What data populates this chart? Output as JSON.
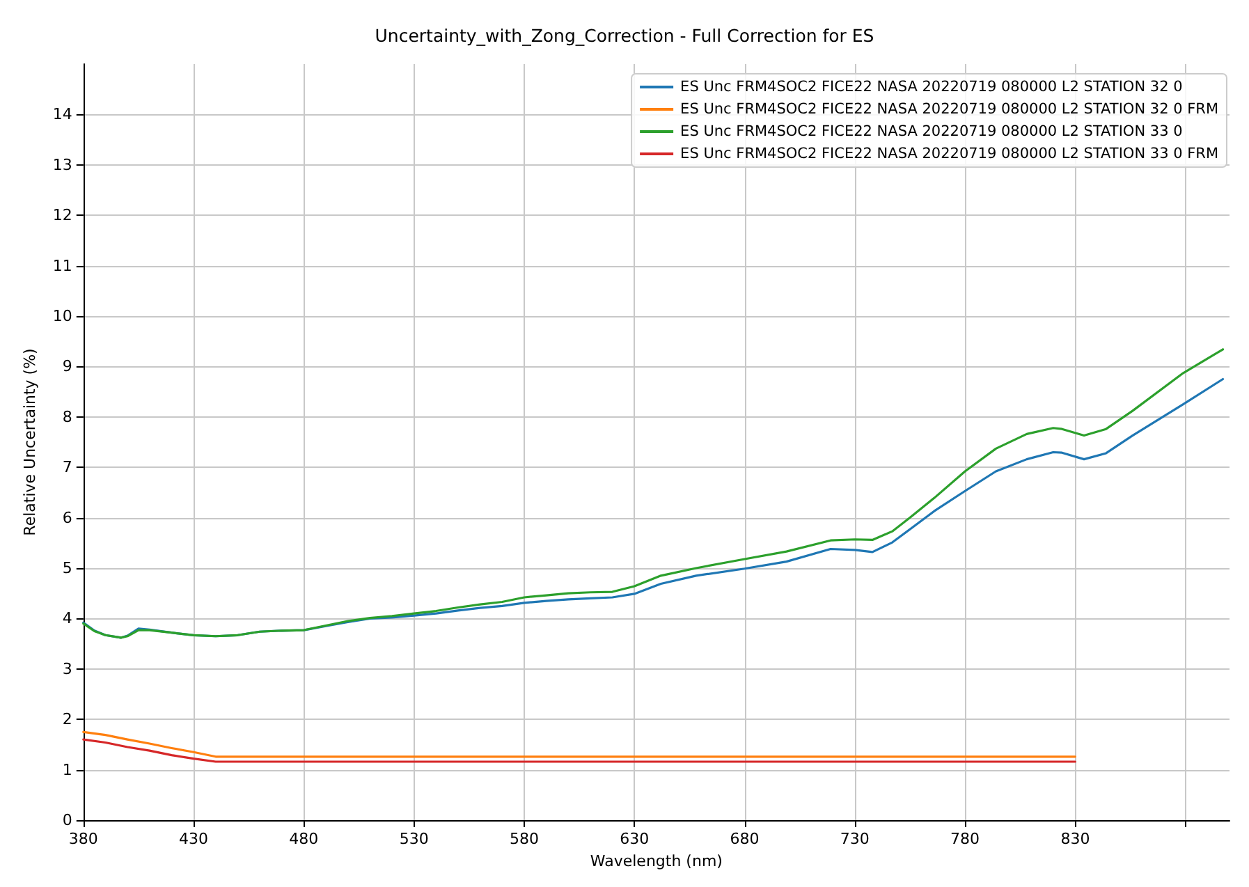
{
  "chart_data": {
    "type": "line",
    "title": "Uncertainty_with_Zong_Correction - Full Correction for ES",
    "xlabel": "Wavelength (nm)",
    "ylabel": "Relative Uncertainty (%)",
    "xlim": [
      380,
      900
    ],
    "xticks": [
      380,
      430,
      480,
      530,
      580,
      630,
      680,
      730,
      780,
      830,
      {
        "value": 880,
        "label": null
      }
    ],
    "ylim": [
      0,
      15
    ],
    "yticks": [
      0,
      1,
      2,
      3,
      4,
      5,
      6,
      7,
      8,
      9,
      10,
      11,
      12,
      13,
      14
    ],
    "grid": true,
    "legend": "top right",
    "marker": "none",
    "line_style": "solid",
    "series": [
      {
        "name": "ES Unc FRM4SOC2 FICE22 NASA 20220719 080000 L2 STATION 32 0",
        "color": "#1f77b4",
        "x": [
          380,
          385,
          390,
          397,
          400,
          405,
          410,
          420,
          430,
          440,
          450,
          460,
          470,
          480,
          490,
          500,
          510,
          520,
          530,
          540,
          550,
          560,
          570,
          580,
          590,
          600,
          610,
          620,
          630,
          642,
          658,
          680,
          699,
          719,
          730,
          738,
          747,
          755,
          766,
          780,
          794,
          808,
          820,
          824,
          834,
          844,
          856,
          879,
          897
        ],
        "values": [
          3.92,
          3.76,
          3.67,
          3.62,
          3.66,
          3.8,
          3.78,
          3.72,
          3.67,
          3.65,
          3.67,
          3.74,
          3.76,
          3.77,
          3.85,
          3.93,
          4.0,
          4.02,
          4.06,
          4.1,
          4.16,
          4.21,
          4.25,
          4.31,
          4.35,
          4.38,
          4.4,
          4.42,
          4.49,
          4.69,
          4.85,
          4.99,
          5.13,
          5.38,
          5.36,
          5.32,
          5.51,
          5.77,
          6.13,
          6.53,
          6.92,
          7.16,
          7.3,
          7.29,
          7.16,
          7.28,
          7.63,
          8.25,
          8.75
        ]
      },
      {
        "name": "ES Unc FRM4SOC2 FICE22 NASA 20220719 080000 L2 STATION 32 0 FRM",
        "color": "#ff7f0e",
        "x": [
          380,
          390,
          400,
          410,
          420,
          430,
          440,
          500,
          600,
          700,
          830
        ],
        "values": [
          1.75,
          1.69,
          1.6,
          1.52,
          1.43,
          1.35,
          1.26,
          1.26,
          1.26,
          1.26,
          1.26
        ]
      },
      {
        "name": "ES Unc FRM4SOC2 FICE22 NASA 20220719 080000 L2 STATION 33 0",
        "color": "#2ca02c",
        "x": [
          380,
          385,
          390,
          397,
          400,
          405,
          410,
          420,
          430,
          440,
          450,
          460,
          470,
          480,
          490,
          500,
          510,
          520,
          530,
          540,
          550,
          560,
          570,
          580,
          590,
          600,
          610,
          620,
          630,
          642,
          658,
          680,
          699,
          719,
          730,
          738,
          747,
          755,
          766,
          780,
          794,
          808,
          820,
          824,
          834,
          844,
          856,
          879,
          897
        ],
        "values": [
          3.9,
          3.75,
          3.67,
          3.62,
          3.65,
          3.77,
          3.77,
          3.72,
          3.67,
          3.65,
          3.67,
          3.74,
          3.76,
          3.77,
          3.86,
          3.95,
          4.01,
          4.05,
          4.1,
          4.15,
          4.22,
          4.28,
          4.33,
          4.42,
          4.46,
          4.5,
          4.52,
          4.53,
          4.64,
          4.85,
          5.0,
          5.18,
          5.33,
          5.55,
          5.57,
          5.56,
          5.73,
          6.0,
          6.39,
          6.92,
          7.37,
          7.66,
          7.78,
          7.76,
          7.63,
          7.76,
          8.12,
          8.87,
          9.34
        ]
      },
      {
        "name": "ES Unc FRM4SOC2 FICE22 NASA 20220719 080000 L2 STATION 33 0 FRM",
        "color": "#d62728",
        "x": [
          380,
          390,
          400,
          410,
          420,
          430,
          440,
          500,
          600,
          700,
          830
        ],
        "values": [
          1.6,
          1.54,
          1.45,
          1.38,
          1.29,
          1.22,
          1.16,
          1.16,
          1.16,
          1.16,
          1.16
        ]
      }
    ]
  }
}
